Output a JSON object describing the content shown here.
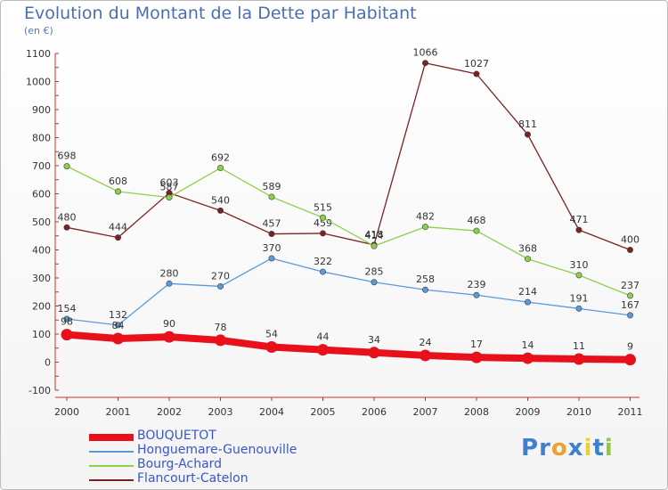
{
  "title": "Evolution du Montant de la Dette par Habitant",
  "subtitle": "(en €)",
  "brand": {
    "letters": [
      "P",
      "r",
      "o",
      "x",
      "i",
      "t",
      "i"
    ],
    "colors": [
      "#3f7fd0",
      "#3f7fd0",
      "#f0a030",
      "#3f7fd0",
      "#f0d030",
      "#3f7fd0",
      "#90c840"
    ]
  },
  "chart_data": {
    "type": "line",
    "x": [
      "2000",
      "2001",
      "2002",
      "2003",
      "2004",
      "2005",
      "2006",
      "2007",
      "2008",
      "2009",
      "2010",
      "2011"
    ],
    "ylim": [
      -100,
      1100
    ],
    "yticks": [
      -100,
      0,
      100,
      200,
      300,
      400,
      500,
      600,
      700,
      800,
      900,
      1000,
      1100
    ],
    "grid": false,
    "legend_position": "bottom-left",
    "series": [
      {
        "name": "BOUQUETOT",
        "color": "#e8101a",
        "values": [
          98,
          84,
          90,
          78,
          54,
          44,
          34,
          24,
          17,
          14,
          11,
          9
        ]
      },
      {
        "name": "Honguemare-Guenouville",
        "color": "#5a9ad8",
        "values": [
          154,
          132,
          280,
          270,
          370,
          322,
          285,
          258,
          239,
          214,
          191,
          167
        ]
      },
      {
        "name": "Bourg-Achard",
        "color": "#8fd04a",
        "values": [
          698,
          608,
          587,
          692,
          589,
          515,
          414,
          482,
          468,
          368,
          310,
          237
        ]
      },
      {
        "name": "Flancourt-Catelon",
        "color": "#7a2222",
        "values": [
          480,
          444,
          603,
          540,
          457,
          459,
          418,
          1066,
          1027,
          811,
          471,
          400
        ]
      }
    ]
  }
}
